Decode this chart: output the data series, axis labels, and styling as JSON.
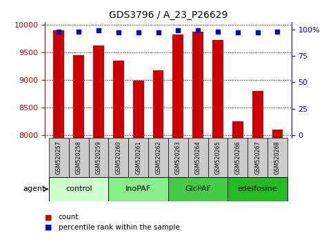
{
  "title": "GDS3796 / A_23_P26629",
  "samples": [
    "GSM520257",
    "GSM520258",
    "GSM520259",
    "GSM520260",
    "GSM520261",
    "GSM520262",
    "GSM520263",
    "GSM520264",
    "GSM520265",
    "GSM520266",
    "GSM520267",
    "GSM520268"
  ],
  "counts": [
    9900,
    9450,
    9620,
    9350,
    8990,
    9180,
    9820,
    9870,
    9720,
    8250,
    8800,
    8100
  ],
  "percentiles": [
    98,
    98,
    99,
    97,
    97,
    97,
    99,
    99,
    98,
    97,
    97,
    98
  ],
  "ylim_left": [
    7950,
    10050
  ],
  "ylim_right": [
    -2.5,
    107
  ],
  "yticks_left": [
    8000,
    8500,
    9000,
    9500,
    10000
  ],
  "yticks_right": [
    0,
    25,
    50,
    75,
    100
  ],
  "groups": [
    {
      "label": "control",
      "start": 0,
      "end": 3,
      "color": "#ccffcc"
    },
    {
      "label": "InoPAF",
      "start": 3,
      "end": 6,
      "color": "#88ee88"
    },
    {
      "label": "GlcPAF",
      "start": 6,
      "end": 9,
      "color": "#44cc44"
    },
    {
      "label": "edelfosine",
      "start": 9,
      "end": 12,
      "color": "#22bb22"
    }
  ],
  "bar_color": "#cc0000",
  "dot_color": "#0000cc",
  "bar_width": 0.55,
  "tick_color_left": "#cc0000",
  "tick_color_right": "#0000cc",
  "sample_box_color": "#cccccc",
  "title_fontsize": 10,
  "tick_fontsize": 8,
  "sample_fontsize": 5.8,
  "group_fontsize": 8,
  "legend_fontsize": 7.5
}
